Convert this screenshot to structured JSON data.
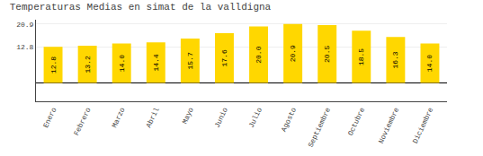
{
  "chart_data": {
    "type": "bar",
    "title": "Temperaturas Medias en simat de la valldigna",
    "categories": [
      "Enero",
      "Febrero",
      "Marzo",
      "Abril",
      "Mayo",
      "Junio",
      "Julio",
      "Agosto",
      "Septiembre",
      "Octubre",
      "Noviembre",
      "Diciembre"
    ],
    "values": [
      12.8,
      13.2,
      14.0,
      14.4,
      15.7,
      17.6,
      20.0,
      20.9,
      20.5,
      18.5,
      16.3,
      14.0
    ],
    "value_labels": [
      "12.8",
      "13.2",
      "14.0",
      "14.4",
      "15.7",
      "17.6",
      "20.0",
      "20.9",
      "20.5",
      "18.5",
      "16.3",
      "14.0"
    ],
    "color": "#FFD700",
    "ylim": [
      -6.5,
      22.4
    ],
    "yticks": [
      12.8,
      20.9
    ],
    "y2lim": [
      -6.5,
      22.4
    ],
    "y2ticks": [
      12.8,
      20.9
    ],
    "grid": true,
    "data_labels": true
  }
}
